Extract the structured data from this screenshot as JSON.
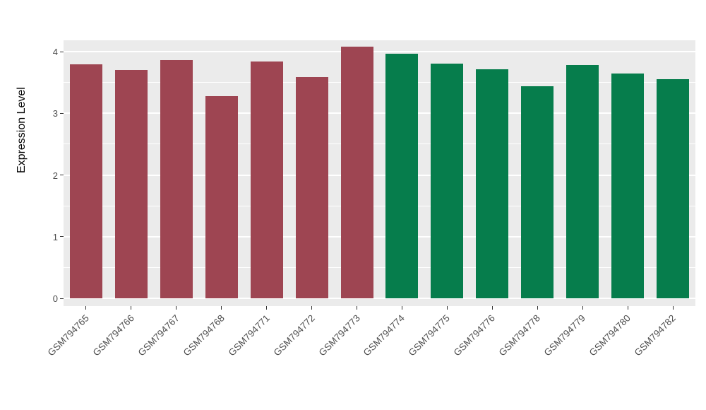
{
  "chart_data": {
    "type": "bar",
    "title": "",
    "xlabel": "",
    "ylabel": "Expression Level",
    "categories": [
      "GSM794765",
      "GSM794766",
      "GSM794767",
      "GSM794768",
      "GSM794771",
      "GSM794772",
      "GSM794773",
      "GSM794774",
      "GSM794775",
      "GSM794776",
      "GSM794778",
      "GSM794779",
      "GSM794780",
      "GSM794782"
    ],
    "values": [
      3.79,
      3.7,
      3.86,
      3.28,
      3.84,
      3.59,
      4.08,
      3.97,
      3.8,
      3.71,
      3.44,
      3.78,
      3.64,
      3.55
    ],
    "bar_colors": [
      "#9E4552",
      "#9E4552",
      "#9E4552",
      "#9E4552",
      "#9E4552",
      "#9E4552",
      "#9E4552",
      "#067D4C",
      "#067D4C",
      "#067D4C",
      "#067D4C",
      "#067D4C",
      "#067D4C",
      "#067D4C"
    ],
    "ylim": [
      0,
      4.3
    ],
    "yticks": [
      0,
      1,
      2,
      3,
      4
    ],
    "ytick_labels": [
      "0",
      "1",
      "2",
      "3",
      "4"
    ],
    "minor_ticks": [
      0.5,
      1.5,
      2.5,
      3.5
    ],
    "grid": "on",
    "legend_position": "none",
    "panel_bg": "#EBEBEB",
    "grid_color": "#FFFFFF",
    "tick_color": "#333333",
    "tick_label_color": "#4D4D4D"
  }
}
